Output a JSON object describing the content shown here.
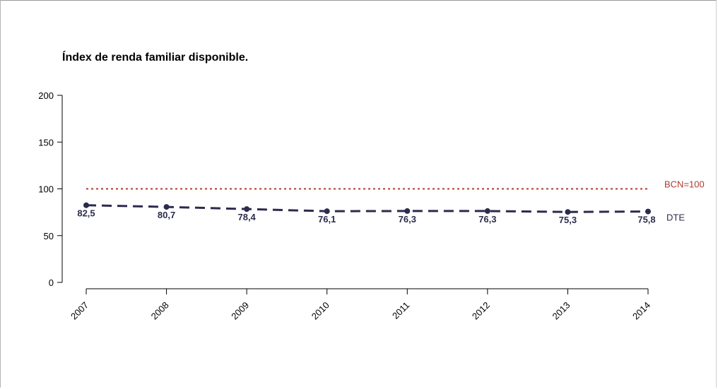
{
  "chart_data": {
    "type": "line",
    "title": "Índex de renda familiar disponible.",
    "xlabel": "",
    "ylabel": "",
    "ylim": [
      0,
      200
    ],
    "yticks": [
      "0",
      "50",
      "100",
      "150",
      "200"
    ],
    "categories": [
      "2007",
      "2008",
      "2009",
      "2010",
      "2011",
      "2012",
      "2013",
      "2014"
    ],
    "series": [
      {
        "name": "DTE",
        "values": [
          82.5,
          80.7,
          78.4,
          76.1,
          76.3,
          76.3,
          75.3,
          75.8
        ],
        "labels": [
          "82,5",
          "80,7",
          "78,4",
          "76,1",
          "76,3",
          "76,3",
          "75,3",
          "75,8"
        ],
        "color": "#2b2b4e",
        "style": "dashed"
      }
    ],
    "reference_line": {
      "label": "BCN=100",
      "value": 100,
      "color": "#b03a2e",
      "style": "dotted"
    },
    "grid": false,
    "legend": "none"
  }
}
